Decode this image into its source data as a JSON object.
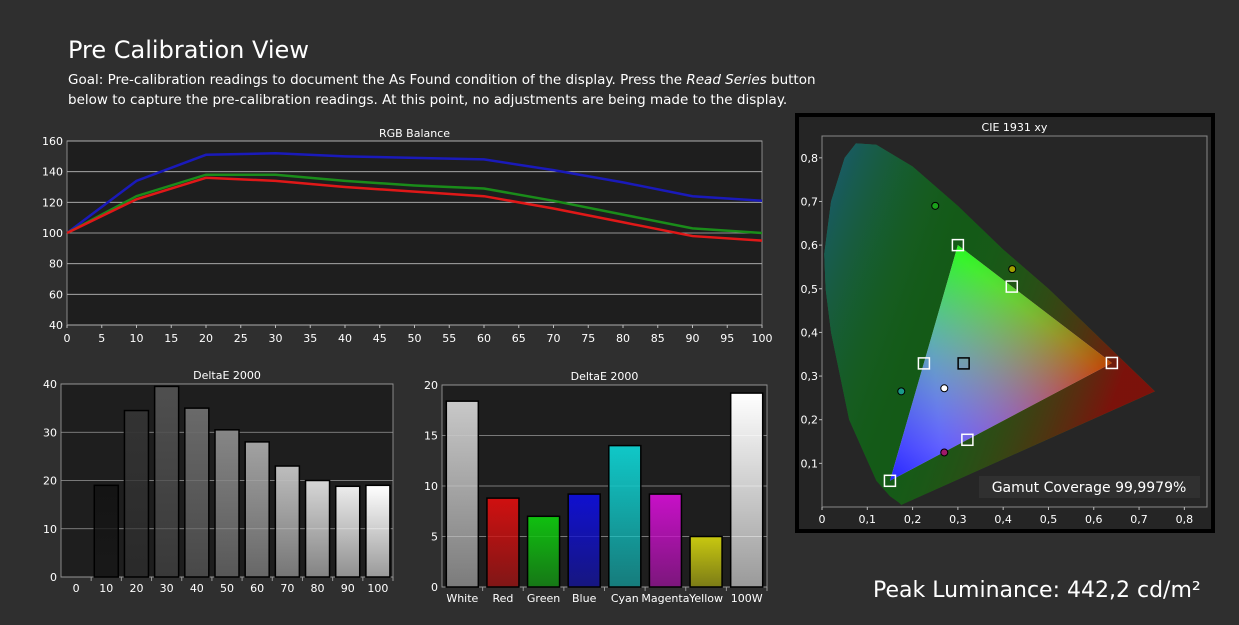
{
  "page": {
    "title": "Pre Calibration View",
    "goal_prefix": "Goal: Pre-calibration readings to document the As Found condition of the display. Press the ",
    "goal_italic": "Read Series",
    "goal_suffix": " button below to capture the pre-calibration readings. At this point, no adjustments are being made to the display.",
    "peak_luminance": "Peak Luminance: 442,2 cd/m²"
  },
  "colors": {
    "background": "#2f2f2f",
    "plot_bg": "#1e1e1e",
    "red": "#e01818",
    "green": "#1a8c1a",
    "blue": "#1a1aba"
  },
  "chart_data": [
    {
      "id": "rgb",
      "type": "line",
      "title": "RGB Balance",
      "xlim": [
        0,
        100
      ],
      "ylim": [
        40,
        160
      ],
      "x_ticks": [
        0,
        5,
        10,
        15,
        20,
        25,
        30,
        35,
        40,
        45,
        50,
        55,
        60,
        65,
        70,
        75,
        80,
        85,
        90,
        95,
        100
      ],
      "y_ticks": [
        40,
        60,
        80,
        100,
        120,
        140,
        160
      ],
      "grid": true,
      "x": [
        0,
        10,
        20,
        30,
        40,
        50,
        60,
        70,
        80,
        90,
        100
      ],
      "series": [
        {
          "color": "#1a1aba",
          "values": [
            100,
            134,
            151,
            152,
            150,
            149,
            148,
            141,
            133,
            124,
            121
          ]
        },
        {
          "color": "#1a8c1a",
          "values": [
            100,
            124,
            138,
            138,
            134,
            131,
            129,
            121,
            112,
            103,
            100
          ]
        },
        {
          "color": "#e01818",
          "values": [
            100,
            122,
            136,
            134,
            130,
            127,
            124,
            116,
            107,
            98,
            95
          ]
        }
      ]
    },
    {
      "id": "de_gray",
      "type": "bar",
      "title": "DeltaE 2000",
      "ylim": [
        0,
        40
      ],
      "y_ticks": [
        0,
        10,
        20,
        30,
        40
      ],
      "categories": [
        "0",
        "10",
        "20",
        "30",
        "40",
        "50",
        "60",
        "70",
        "80",
        "90",
        "100"
      ],
      "values": [
        0,
        19,
        34.5,
        39.5,
        35,
        30.5,
        28,
        23,
        20,
        18.8,
        19
      ],
      "bar_colors": [
        "#000000",
        "#141414",
        "#333333",
        "#4f4f4f",
        "#6a6a6a",
        "#868686",
        "#a2a2a2",
        "#bdbdbd",
        "#d6d6d6",
        "#ececec",
        "#ffffff"
      ]
    },
    {
      "id": "de_color",
      "type": "bar",
      "title": "DeltaE 2000",
      "ylim": [
        0,
        20
      ],
      "y_ticks": [
        0,
        5,
        10,
        15,
        20
      ],
      "categories": [
        "White",
        "Red",
        "Green",
        "Blue",
        "Cyan",
        "Magenta",
        "Yellow",
        "100W"
      ],
      "values": [
        18.4,
        8.8,
        7,
        9.2,
        14,
        9.2,
        5,
        19.2
      ],
      "bar_colors": [
        "#c8c8c8",
        "#d01010",
        "#10c010",
        "#1010d0",
        "#10c8c8",
        "#c810c8",
        "#c8c810",
        "#ffffff"
      ]
    },
    {
      "id": "cie",
      "type": "scatter",
      "title": "CIE 1931 xy",
      "xlim": [
        0,
        0.85
      ],
      "ylim": [
        0,
        0.85
      ],
      "x_ticks": [
        "0",
        "0,1",
        "0,2",
        "0,3",
        "0,4",
        "0,5",
        "0,6",
        "0,7",
        "0,8"
      ],
      "y_ticks": [
        "0,1",
        "0,2",
        "0,3",
        "0,4",
        "0,5",
        "0,6",
        "0,7",
        "0,8"
      ],
      "gamut_coverage": "Gamut Coverage 99,9979%",
      "target_points": [
        {
          "name": "Red",
          "x": 0.64,
          "y": 0.33
        },
        {
          "name": "Green",
          "x": 0.3,
          "y": 0.6
        },
        {
          "name": "Blue",
          "x": 0.15,
          "y": 0.06
        },
        {
          "name": "White",
          "x": 0.3127,
          "y": 0.329
        },
        {
          "name": "Cyan",
          "x": 0.225,
          "y": 0.329
        },
        {
          "name": "Magenta",
          "x": 0.321,
          "y": 0.154
        },
        {
          "name": "Yellow",
          "x": 0.419,
          "y": 0.505
        }
      ],
      "measured_points": [
        {
          "name": "Green",
          "x": 0.25,
          "y": 0.69,
          "color": "#1aa01a"
        },
        {
          "name": "Yellow",
          "x": 0.42,
          "y": 0.545,
          "color": "#a0a000"
        },
        {
          "name": "White",
          "x": 0.27,
          "y": 0.272,
          "color": "#ffffff"
        },
        {
          "name": "Cyan",
          "x": 0.175,
          "y": 0.265,
          "color": "#1a9a8a"
        },
        {
          "name": "Magenta",
          "x": 0.27,
          "y": 0.125,
          "color": "#a01a6a"
        }
      ]
    }
  ]
}
